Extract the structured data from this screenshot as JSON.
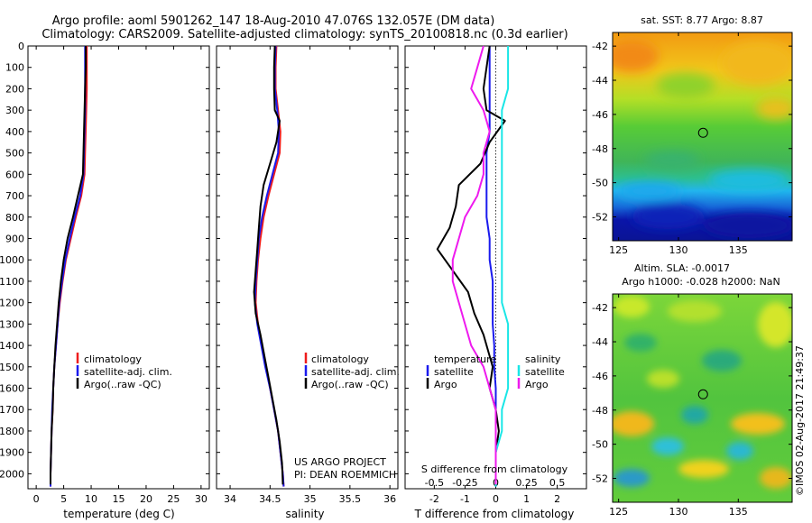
{
  "title_line1": "Argo profile: aoml 5901262_147 18-Aug-2010 47.076S 132.057E (DM data)",
  "title_line2": "Climatology: CARS2009. Satellite-adjusted climatology: synTS_20100818.nc (0.3d earlier)",
  "colors": {
    "climatology": "#ee1c1c",
    "satellite": "#1a1aee",
    "argo": "#000000",
    "salinity_satellite": "#19e6e6",
    "salinity_argo": "#ee1aee"
  },
  "map_sst_title": "sat. SST: 8.77 Argo: 8.87",
  "map_sla_title1": "Altim. SLA: -0.0017",
  "map_sla_title2": "Argo h1000: -0.028 h2000: NaN",
  "credit": "©IMOS 02-Aug-2017 21:49:37",
  "project_line1": "US ARGO PROJECT",
  "project_line2": "PI: DEAN ROEMMICH",
  "chart_data": [
    {
      "type": "line",
      "xlabel": "temperature (deg C)",
      "xlim": [
        -1.5,
        31.5
      ],
      "ylim": [
        2070,
        0
      ],
      "x_ticks": [
        "0",
        "5",
        "10",
        "15",
        "20",
        "25",
        "30"
      ],
      "y_ticks": [
        "0",
        "100",
        "200",
        "300",
        "400",
        "500",
        "600",
        "700",
        "800",
        "900",
        "1000",
        "1100",
        "1200",
        "1300",
        "1400",
        "1500",
        "1600",
        "1700",
        "1800",
        "1900",
        "2000"
      ],
      "legend": [
        "climatology",
        "satellite-adj. clim.",
        "Argo(..raw -QC)"
      ],
      "series": [
        {
          "name": "climatology",
          "points": [
            [
              9.2,
              0
            ],
            [
              9.2,
              100
            ],
            [
              9.2,
              200
            ],
            [
              9.1,
              300
            ],
            [
              9.0,
              400
            ],
            [
              8.9,
              500
            ],
            [
              8.8,
              600
            ],
            [
              8.2,
              700
            ],
            [
              7.2,
              800
            ],
            [
              6.3,
              900
            ],
            [
              5.4,
              1000
            ],
            [
              4.8,
              1100
            ],
            [
              4.3,
              1200
            ],
            [
              3.9,
              1300
            ],
            [
              3.6,
              1400
            ],
            [
              3.3,
              1500
            ],
            [
              3.1,
              1600
            ],
            [
              3.0,
              1700
            ],
            [
              2.8,
              1800
            ],
            [
              2.7,
              1900
            ],
            [
              2.6,
              2000
            ],
            [
              2.6,
              2060
            ]
          ]
        },
        {
          "name": "satellite-adj. clim.",
          "points": [
            [
              8.9,
              0
            ],
            [
              8.9,
              100
            ],
            [
              8.9,
              200
            ],
            [
              8.9,
              300
            ],
            [
              8.8,
              400
            ],
            [
              8.7,
              500
            ],
            [
              8.6,
              600
            ],
            [
              8.0,
              700
            ],
            [
              7.0,
              800
            ],
            [
              6.1,
              900
            ],
            [
              5.3,
              1000
            ],
            [
              4.7,
              1100
            ],
            [
              4.2,
              1200
            ],
            [
              3.9,
              1300
            ],
            [
              3.6,
              1400
            ],
            [
              3.3,
              1500
            ],
            [
              3.1,
              1600
            ],
            [
              2.9,
              1700
            ],
            [
              2.8,
              1800
            ],
            [
              2.7,
              1900
            ],
            [
              2.6,
              2000
            ],
            [
              2.6,
              2060
            ]
          ]
        },
        {
          "name": "Argo(..raw -QC)",
          "points": [
            [
              9.0,
              0
            ],
            [
              9.0,
              100
            ],
            [
              8.9,
              200
            ],
            [
              8.8,
              300
            ],
            [
              8.7,
              400
            ],
            [
              8.6,
              500
            ],
            [
              8.5,
              600
            ],
            [
              7.6,
              700
            ],
            [
              6.7,
              800
            ],
            [
              5.7,
              900
            ],
            [
              5.0,
              1000
            ],
            [
              4.5,
              1100
            ],
            [
              4.1,
              1200
            ],
            [
              3.8,
              1300
            ],
            [
              3.5,
              1400
            ],
            [
              3.3,
              1500
            ],
            [
              3.1,
              1600
            ],
            [
              3.0,
              1700
            ],
            [
              2.8,
              1800
            ],
            [
              2.7,
              1900
            ],
            [
              2.6,
              2000
            ],
            [
              2.6,
              2050
            ]
          ]
        }
      ]
    },
    {
      "type": "line",
      "xlabel": "salinity",
      "xlim": [
        33.83,
        36.1
      ],
      "ylim": [
        2070,
        0
      ],
      "x_ticks": [
        "34",
        "34.5",
        "35",
        "35.5",
        "36"
      ],
      "legend": [
        "climatology",
        "satellite-adj. clim.",
        "Argo(..raw -QC)"
      ],
      "series": [
        {
          "name": "climatology",
          "points": [
            [
              34.58,
              0
            ],
            [
              34.57,
              100
            ],
            [
              34.57,
              200
            ],
            [
              34.6,
              300
            ],
            [
              34.63,
              400
            ],
            [
              34.62,
              500
            ],
            [
              34.55,
              600
            ],
            [
              34.48,
              700
            ],
            [
              34.42,
              800
            ],
            [
              34.38,
              900
            ],
            [
              34.35,
              1000
            ],
            [
              34.33,
              1100
            ],
            [
              34.32,
              1200
            ],
            [
              34.35,
              1300
            ],
            [
              34.4,
              1400
            ],
            [
              34.45,
              1500
            ],
            [
              34.5,
              1600
            ],
            [
              34.55,
              1700
            ],
            [
              34.6,
              1800
            ],
            [
              34.63,
              1900
            ],
            [
              34.66,
              2000
            ],
            [
              34.67,
              2060
            ]
          ]
        },
        {
          "name": "satellite-adj. clim.",
          "points": [
            [
              34.57,
              0
            ],
            [
              34.56,
              100
            ],
            [
              34.56,
              200
            ],
            [
              34.59,
              300
            ],
            [
              34.61,
              400
            ],
            [
              34.6,
              500
            ],
            [
              34.53,
              600
            ],
            [
              34.46,
              700
            ],
            [
              34.4,
              800
            ],
            [
              34.36,
              900
            ],
            [
              34.34,
              1000
            ],
            [
              34.32,
              1100
            ],
            [
              34.31,
              1200
            ],
            [
              34.34,
              1300
            ],
            [
              34.39,
              1400
            ],
            [
              34.44,
              1500
            ],
            [
              34.5,
              1600
            ],
            [
              34.55,
              1700
            ],
            [
              34.6,
              1800
            ],
            [
              34.63,
              1900
            ],
            [
              34.66,
              2000
            ],
            [
              34.67,
              2060
            ]
          ]
        },
        {
          "name": "Argo(..raw -QC)",
          "points": [
            [
              34.56,
              0
            ],
            [
              34.55,
              100
            ],
            [
              34.55,
              200
            ],
            [
              34.56,
              300
            ],
            [
              34.62,
              350
            ],
            [
              34.58,
              450
            ],
            [
              34.5,
              550
            ],
            [
              34.42,
              650
            ],
            [
              34.38,
              750
            ],
            [
              34.36,
              850
            ],
            [
              34.34,
              950
            ],
            [
              34.32,
              1050
            ],
            [
              34.3,
              1150
            ],
            [
              34.32,
              1250
            ],
            [
              34.38,
              1350
            ],
            [
              34.43,
              1450
            ],
            [
              34.48,
              1550
            ],
            [
              34.53,
              1650
            ],
            [
              34.58,
              1750
            ],
            [
              34.62,
              1850
            ],
            [
              34.65,
              1950
            ],
            [
              34.66,
              2050
            ]
          ]
        }
      ]
    },
    {
      "type": "line",
      "xlabel": "T difference from climatology",
      "xlabel_top": "S difference from climatology",
      "xlim": [
        -2.95,
        2.95
      ],
      "ylim": [
        2070,
        0
      ],
      "x_ticks": [
        "-2",
        "-1",
        "0",
        "1",
        "2"
      ],
      "x_ticks_top": [
        "-0.5",
        "-0.25",
        "0",
        "0.25",
        "0.5"
      ],
      "legend_temperature": "temperature",
      "legend_salinity": "salinity",
      "legend_entries": [
        "satellite",
        "Argo"
      ],
      "series": [
        {
          "name": "temperature satellite",
          "points": [
            [
              -0.2,
              0
            ],
            [
              -0.2,
              100
            ],
            [
              -0.2,
              200
            ],
            [
              -0.2,
              300
            ],
            [
              -0.2,
              400
            ],
            [
              -0.3,
              500
            ],
            [
              -0.3,
              600
            ],
            [
              -0.3,
              700
            ],
            [
              -0.3,
              800
            ],
            [
              -0.2,
              900
            ],
            [
              -0.2,
              1000
            ],
            [
              -0.1,
              1100
            ],
            [
              -0.1,
              1200
            ],
            [
              -0.1,
              1300
            ],
            [
              -0.05,
              1400
            ],
            [
              -0.05,
              1500
            ],
            [
              0,
              1600
            ],
            [
              0,
              1700
            ],
            [
              0,
              1800
            ],
            [
              0,
              1900
            ],
            [
              0,
              2000
            ],
            [
              0,
              2060
            ]
          ]
        },
        {
          "name": "temperature Argo",
          "points": [
            [
              -0.2,
              0
            ],
            [
              -0.3,
              100
            ],
            [
              -0.4,
              200
            ],
            [
              -0.3,
              300
            ],
            [
              0.3,
              350
            ],
            [
              -0.2,
              450
            ],
            [
              -0.5,
              550
            ],
            [
              -1.2,
              650
            ],
            [
              -1.3,
              750
            ],
            [
              -1.5,
              850
            ],
            [
              -1.9,
              950
            ],
            [
              -1.4,
              1050
            ],
            [
              -0.9,
              1150
            ],
            [
              -0.7,
              1250
            ],
            [
              -0.4,
              1350
            ],
            [
              -0.2,
              1450
            ],
            [
              -0.1,
              1500
            ],
            [
              -0.2,
              1600
            ],
            [
              0,
              1700
            ],
            [
              0.1,
              1800
            ],
            [
              0,
              1900
            ],
            [
              0,
              2000
            ],
            [
              0,
              2050
            ]
          ]
        },
        {
          "name": "salinity satellite",
          "points": [
            [
              0.1,
              0
            ],
            [
              0.1,
              100
            ],
            [
              0.1,
              200
            ],
            [
              0.05,
              300
            ],
            [
              0.05,
              400
            ],
            [
              0.05,
              500
            ],
            [
              0.05,
              600
            ],
            [
              0.05,
              700
            ],
            [
              0.05,
              800
            ],
            [
              0.05,
              900
            ],
            [
              0.05,
              1000
            ],
            [
              0.05,
              1100
            ],
            [
              0.05,
              1200
            ],
            [
              0.1,
              1300
            ],
            [
              0.1,
              1400
            ],
            [
              0.1,
              1500
            ],
            [
              0.1,
              1600
            ],
            [
              0.05,
              1700
            ],
            [
              0.05,
              1800
            ],
            [
              0,
              1900
            ],
            [
              0,
              2000
            ],
            [
              0,
              2060
            ]
          ]
        },
        {
          "name": "salinity Argo",
          "points": [
            [
              -0.1,
              0
            ],
            [
              -0.15,
              100
            ],
            [
              -0.2,
              200
            ],
            [
              -0.1,
              300
            ],
            [
              -0.05,
              400
            ],
            [
              -0.1,
              500
            ],
            [
              -0.1,
              600
            ],
            [
              -0.15,
              700
            ],
            [
              -0.25,
              800
            ],
            [
              -0.3,
              900
            ],
            [
              -0.35,
              1000
            ],
            [
              -0.35,
              1100
            ],
            [
              -0.3,
              1200
            ],
            [
              -0.25,
              1300
            ],
            [
              -0.2,
              1400
            ],
            [
              -0.1,
              1500
            ],
            [
              -0.05,
              1600
            ],
            [
              0,
              1700
            ],
            [
              0,
              1800
            ],
            [
              0,
              1900
            ],
            [
              0,
              2000
            ],
            [
              0,
              2050
            ]
          ]
        }
      ]
    },
    {
      "type": "heatmap",
      "title": "sat. SST: 8.77 Argo: 8.87",
      "xlim": [
        124.5,
        139.5
      ],
      "ylim": [
        -53.4,
        -41.2
      ],
      "x_ticks": [
        "125",
        "130",
        "135"
      ],
      "y_ticks": [
        "-42",
        "-44",
        "-46",
        "-48",
        "-50",
        "-52"
      ],
      "argo_position": [
        132.057,
        -47.076
      ]
    },
    {
      "type": "heatmap",
      "title": "Altim. SLA: -0.0017",
      "subtitle": "Argo h1000: -0.028 h2000: NaN",
      "xlim": [
        124.5,
        139.5
      ],
      "ylim": [
        -53.4,
        -41.2
      ],
      "x_ticks": [
        "125",
        "130",
        "135"
      ],
      "y_ticks": [
        "-42",
        "-44",
        "-46",
        "-48",
        "-50",
        "-52"
      ],
      "argo_position": [
        132.057,
        -47.076
      ]
    }
  ]
}
